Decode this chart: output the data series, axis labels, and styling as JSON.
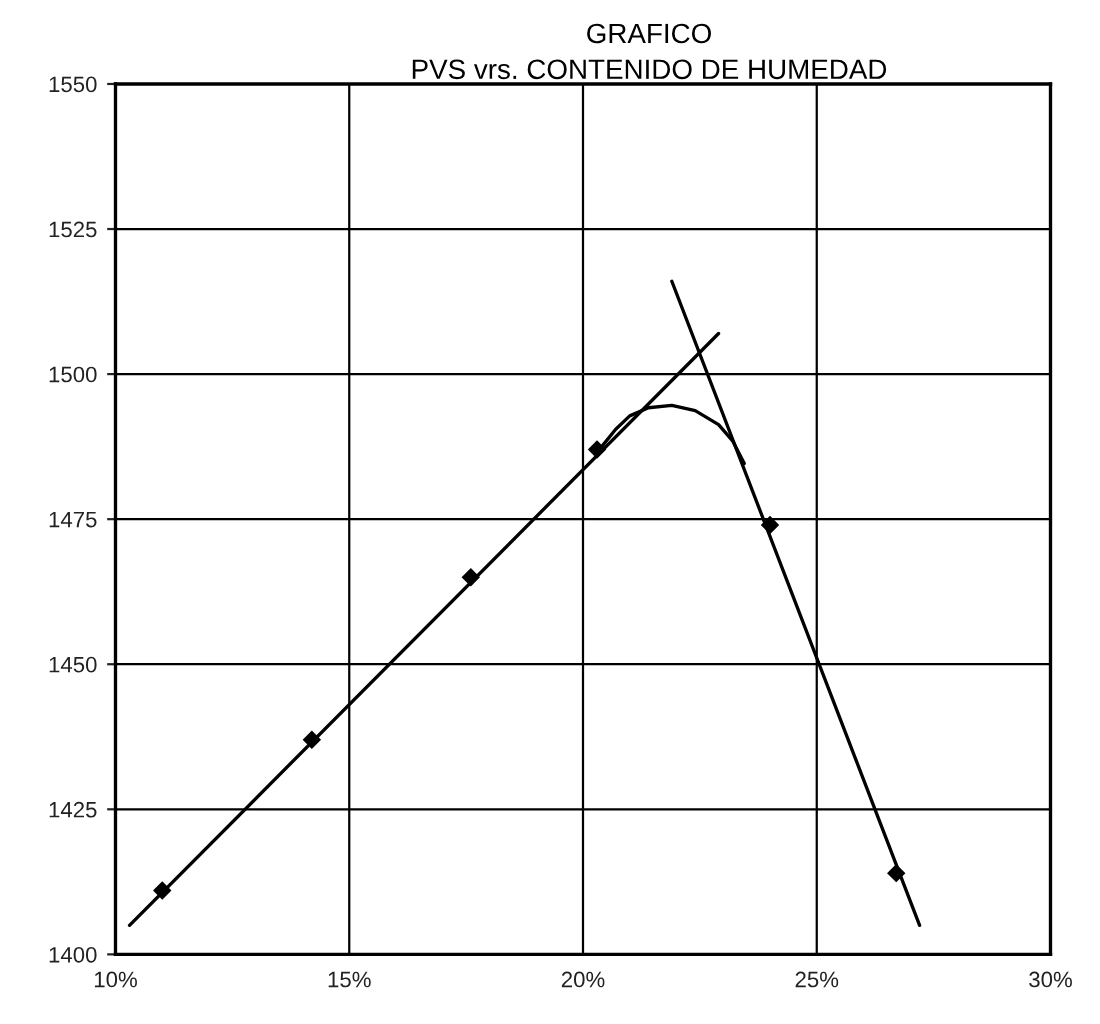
{
  "chart_data": {
    "type": "line",
    "title": "GRAFICO",
    "subtitle": "PVS vrs. CONTENIDO DE HUMEDAD",
    "xlim": [
      10,
      30
    ],
    "xticks": [
      {
        "value": 10,
        "label": "10%"
      },
      {
        "value": 15,
        "label": "15%"
      },
      {
        "value": 20,
        "label": "20%"
      },
      {
        "value": 25,
        "label": "25%"
      },
      {
        "value": 30,
        "label": "30%"
      }
    ],
    "ylim": [
      1400,
      1550
    ],
    "yticks": [
      1400,
      1425,
      1450,
      1475,
      1500,
      1525,
      1550
    ],
    "grid": true,
    "line_style": "solid",
    "series": [
      {
        "type": "scatter",
        "color": "#000000",
        "marker": "diamond",
        "x": [
          11.0,
          14.2,
          17.6,
          20.3,
          24.0,
          26.7
        ],
        "values": [
          1411,
          1437,
          1465,
          1487,
          1474,
          1414
        ]
      },
      {
        "color": "#000000",
        "x": [
          10.3,
          22.9
        ],
        "values": [
          1405,
          1507
        ]
      },
      {
        "color": "#000000",
        "x": [
          21.9,
          27.2
        ],
        "values": [
          1516,
          1405
        ]
      },
      {
        "color": "#000000",
        "x": [
          20.4,
          20.7,
          21.0,
          21.4,
          21.9,
          22.4,
          22.9,
          23.2,
          23.45
        ],
        "values": [
          1487.5,
          1490.5,
          1492.8,
          1494.2,
          1494.6,
          1493.7,
          1491.3,
          1488.5,
          1484.6
        ]
      }
    ]
  }
}
